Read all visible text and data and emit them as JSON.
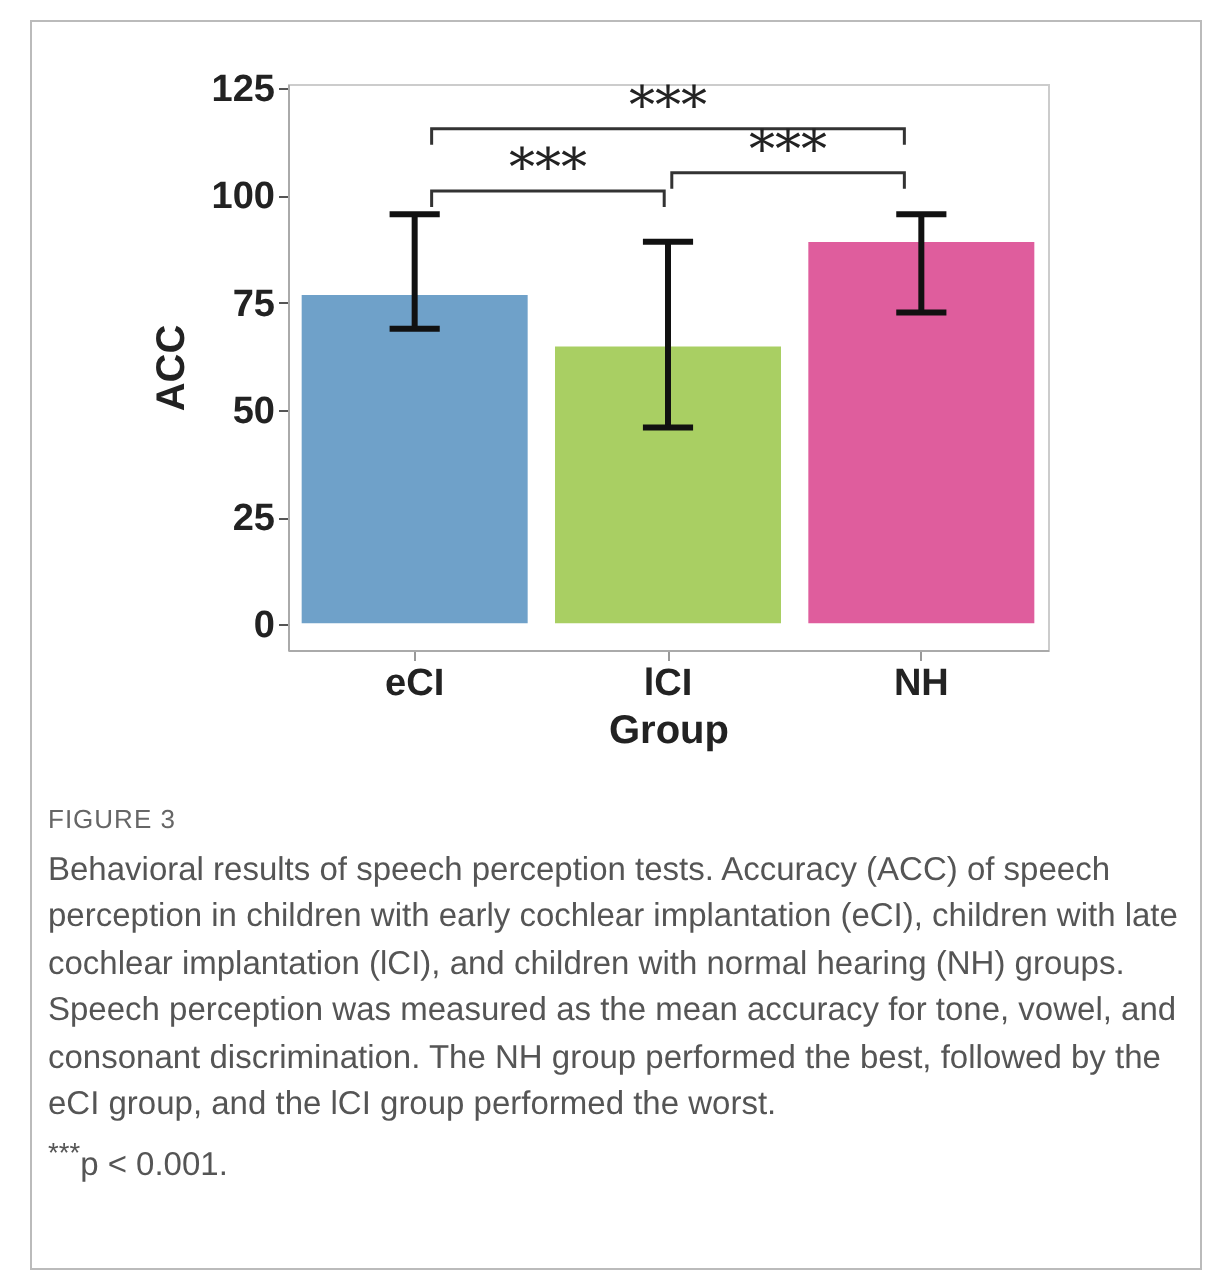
{
  "chart_data": {
    "type": "bar",
    "xlabel": "Group",
    "ylabel": "ACC",
    "categories": [
      "eCI",
      "lCI",
      "NH"
    ],
    "values": [
      77,
      65,
      89.4
    ],
    "colors": [
      "#6fa1c9",
      "#a9cf63",
      "#df5d9d"
    ],
    "errors": [
      [
        68.9,
        95.6
      ],
      [
        45.9,
        89.2
      ],
      [
        72.7,
        95.6
      ]
    ],
    "ylim": [
      -6,
      126
    ],
    "yticks": [
      0,
      25,
      50,
      75,
      100,
      125
    ],
    "grid": false,
    "annotations": [
      "***",
      "***",
      "***",
      "FIGURE 3",
      "Behavioral results of speech perception tests. Accuracy (ACC) of speech perception in children with early cochlear implantation (eCI), children with late cochlear implantation (lCI), and children with normal hearing (NH) groups. Speech perception was measured as the mean accuracy for tone, vowel, and consonant discrimination. The NH group performed the best, followed by the eCI group, and the lCI group performed the worst.",
      "$^{***}$p < 0.001."
    ]
  }
}
